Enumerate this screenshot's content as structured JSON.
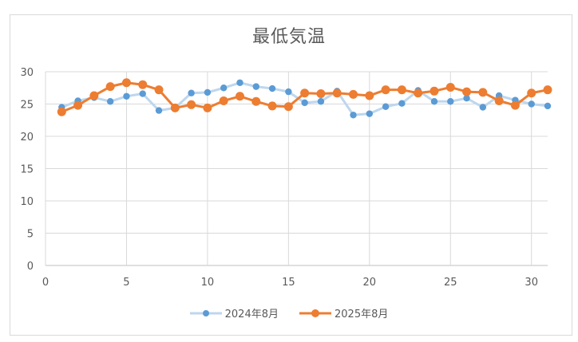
{
  "chart_data": {
    "type": "line",
    "title": "最低気温",
    "xlabel": "",
    "ylabel": "",
    "x": [
      1,
      2,
      3,
      4,
      5,
      6,
      7,
      8,
      9,
      10,
      11,
      12,
      13,
      14,
      15,
      16,
      17,
      18,
      19,
      20,
      21,
      22,
      23,
      24,
      25,
      26,
      27,
      28,
      29,
      30,
      31
    ],
    "xlim": [
      0,
      31
    ],
    "ylim": [
      0,
      30
    ],
    "x_ticks": [
      0,
      5,
      10,
      15,
      20,
      25,
      30
    ],
    "y_ticks": [
      0,
      5,
      10,
      15,
      20,
      25,
      30
    ],
    "grid": true,
    "legend_position": "bottom",
    "series": [
      {
        "name": "2024年8月",
        "color": "#5b9bd5",
        "line_color": "#bdd7ee",
        "values": [
          24.5,
          25.5,
          26.0,
          25.4,
          26.2,
          26.6,
          24.0,
          24.4,
          26.7,
          26.8,
          27.5,
          28.3,
          27.7,
          27.4,
          26.9,
          25.2,
          25.4,
          27.0,
          23.3,
          23.5,
          24.6,
          25.1,
          27.1,
          25.4,
          25.4,
          25.9,
          24.5,
          26.3,
          25.6,
          25.0,
          24.7
        ]
      },
      {
        "name": "2025年8月",
        "color": "#ed7d31",
        "line_color": "#ed7d31",
        "values": [
          23.8,
          24.8,
          26.3,
          27.7,
          28.3,
          28.0,
          27.2,
          24.4,
          24.9,
          24.4,
          25.5,
          26.2,
          25.4,
          24.7,
          24.6,
          26.7,
          26.6,
          26.7,
          26.5,
          26.3,
          27.2,
          27.2,
          26.7,
          27.0,
          27.6,
          26.9,
          26.8,
          25.5,
          24.8,
          26.7,
          27.2
        ]
      }
    ]
  }
}
